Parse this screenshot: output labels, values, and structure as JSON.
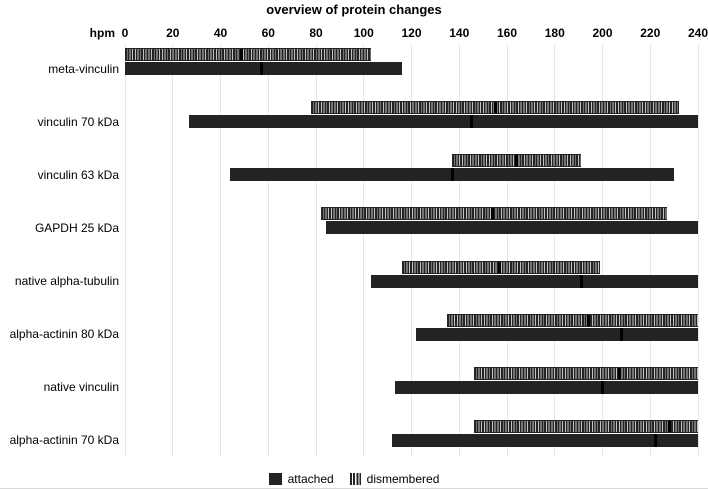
{
  "chart_data": {
    "type": "bar",
    "subtype": "horizontal-range-bars",
    "title": "overview of protein changes",
    "axis": {
      "label": "hpm",
      "min": 0,
      "max": 240,
      "tick_step": 20,
      "ticks": [
        0,
        20,
        40,
        60,
        80,
        100,
        120,
        140,
        160,
        180,
        200,
        220,
        240
      ],
      "position": "top",
      "grid": true
    },
    "legend": [
      {
        "label": "attached",
        "style": "solid"
      },
      {
        "label": "dismembered",
        "style": "striped"
      }
    ],
    "rows": [
      {
        "label": "meta-vinculin",
        "dismembered": {
          "start": 0,
          "end": 103,
          "marker": 49
        },
        "attached": {
          "start": 0,
          "end": 116,
          "marker": 57
        }
      },
      {
        "label": "vinculin 70 kDa",
        "dismembered": {
          "start": 78,
          "end": 232,
          "marker": 155
        },
        "attached": {
          "start": 27,
          "end": 240,
          "marker": 145
        }
      },
      {
        "label": "vinculin 63 kDa",
        "dismembered": {
          "start": 137,
          "end": 191,
          "marker": 164
        },
        "attached": {
          "start": 44,
          "end": 230,
          "marker": 137
        }
      },
      {
        "label": "GAPDH 25 kDa",
        "dismembered": {
          "start": 82,
          "end": 227,
          "marker": 154
        },
        "attached": {
          "start": 84,
          "end": 240,
          "marker": null
        }
      },
      {
        "label": "native alpha-tubulin",
        "dismembered": {
          "start": 116,
          "end": 199,
          "marker": 157
        },
        "attached": {
          "start": 103,
          "end": 240,
          "marker": 191
        }
      },
      {
        "label": "alpha-actinin 80 kDa",
        "dismembered": {
          "start": 135,
          "end": 240,
          "marker": 194
        },
        "attached": {
          "start": 122,
          "end": 240,
          "marker": 208
        }
      },
      {
        "label": "native vinculin",
        "dismembered": {
          "start": 146,
          "end": 240,
          "marker": 207
        },
        "attached": {
          "start": 113,
          "end": 240,
          "marker": 200
        }
      },
      {
        "label": "alpha-actinin 70 kDa",
        "dismembered": {
          "start": 146,
          "end": 240,
          "marker": 228
        },
        "attached": {
          "start": 112,
          "end": 240,
          "marker": 222
        }
      }
    ],
    "colors": {
      "bar": "#232323",
      "marker": "#000000",
      "stripe_gap": "#c2c2c2",
      "gridline": "#e7e7e7",
      "background": "#ffffff",
      "text": "#000000"
    }
  }
}
